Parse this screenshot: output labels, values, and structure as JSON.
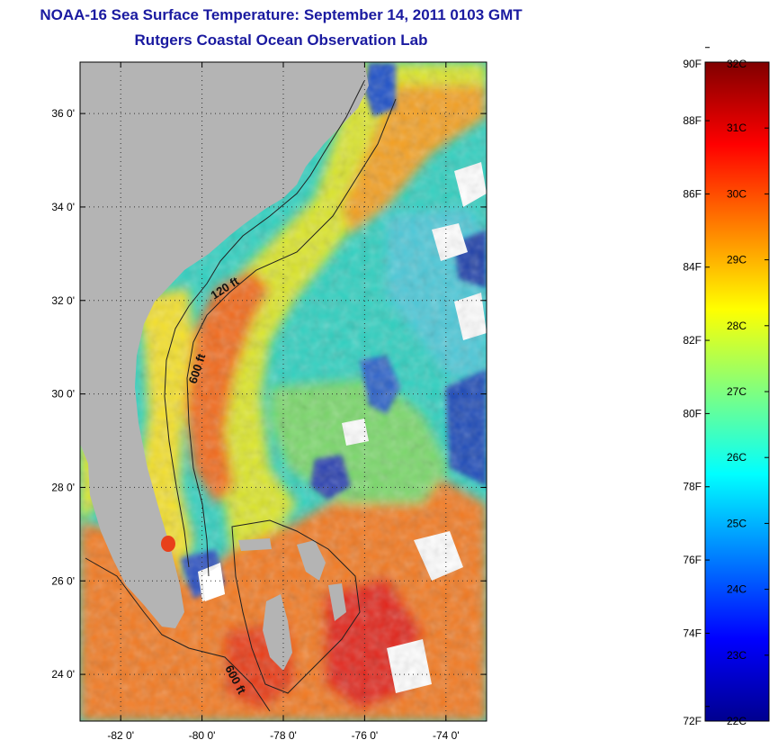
{
  "title": "NOAA-16 Sea Surface Temperature:  September 14, 2011 0103 GMT",
  "subtitle": "Rutgers Coastal Ocean Observation Lab",
  "map": {
    "lat_range": [
      23.0,
      37.1
    ],
    "lon_range": [
      -83.0,
      -73.0
    ],
    "lat_ticks": [
      {
        "value": 24,
        "label": "24 0'"
      },
      {
        "value": 26,
        "label": "26 0'"
      },
      {
        "value": 28,
        "label": "28 0'"
      },
      {
        "value": 30,
        "label": "30 0'"
      },
      {
        "value": 32,
        "label": "32 0'"
      },
      {
        "value": 34,
        "label": "34 0'"
      },
      {
        "value": 36,
        "label": "36 0'"
      }
    ],
    "lon_ticks": [
      {
        "value": -82,
        "label": "-82 0'"
      },
      {
        "value": -80,
        "label": "-80 0'"
      },
      {
        "value": -78,
        "label": "-78 0'"
      },
      {
        "value": -76,
        "label": "-76 0'"
      },
      {
        "value": -74,
        "label": "-74 0'"
      }
    ],
    "grid": "dotted",
    "contour_labels": [
      {
        "text": "120 ft"
      },
      {
        "text": "600 ft"
      },
      {
        "text": "600 ft"
      }
    ],
    "land_color": "#b4b4b4",
    "cloud_color": "#ffffff"
  },
  "colorbar": {
    "min_c": 22,
    "max_c": 32,
    "fahrenheit_labels": [
      "72F",
      "74F",
      "76F",
      "78F",
      "80F",
      "82F",
      "84F",
      "86F",
      "88F",
      "90F"
    ],
    "celsius_labels": [
      "22C",
      "23C",
      "24C",
      "25C",
      "26C",
      "27C",
      "28C",
      "29C",
      "30C",
      "31C",
      "32C"
    ],
    "colormap": "jet"
  }
}
